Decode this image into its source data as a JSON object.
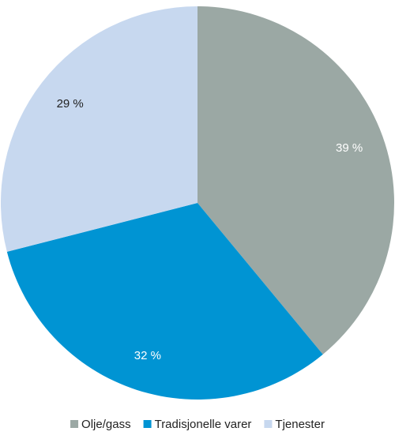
{
  "chart_data": {
    "type": "pie",
    "categories": [
      "Olje/gass",
      "Tradisjonelle varer",
      "Tjenester"
    ],
    "values": [
      39,
      32,
      29
    ],
    "value_labels": [
      "39 %",
      "32 %",
      "29 %"
    ],
    "colors": [
      "#9ba8a4",
      "#0094d3",
      "#c7d8ef"
    ],
    "label_colors": [
      "#ffffff",
      "#ffffff",
      "#222222"
    ]
  }
}
